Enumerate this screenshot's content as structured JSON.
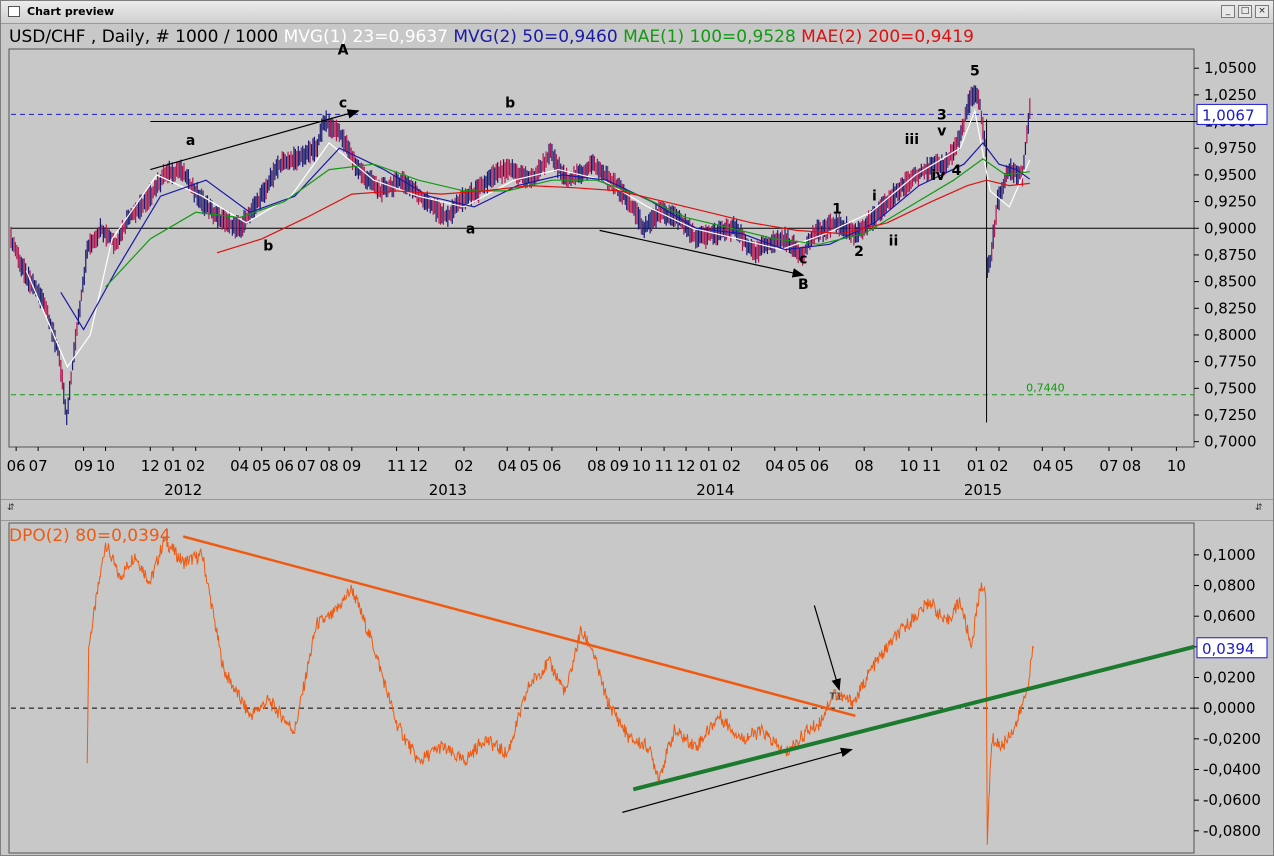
{
  "window": {
    "title": "Chart preview",
    "buttons": {
      "minimize": "_",
      "maximize": "□",
      "close": "×"
    },
    "split_arrows": {
      "left": "⇵",
      "right": "⇵"
    }
  },
  "price_panel": {
    "symbol_label": "USD/CHF , Daily, # 1000 / 1000",
    "indicators": [
      {
        "label": "MVG(1) 23=0,9637",
        "color": "#ffffff"
      },
      {
        "label": "MVG(2) 50=0,9460",
        "color": "#1a1aa8"
      },
      {
        "label": "MAE(1) 100=0,9528",
        "color": "#129a12"
      },
      {
        "label": "MAE(2) 200=0,9419",
        "color": "#e01010"
      }
    ],
    "current_value_label": "1,0067",
    "level_label": "0,7440",
    "wave_labels": [
      {
        "text": "A",
        "x": "2012-08-20",
        "y": 1.063
      },
      {
        "text": "c",
        "x": "2012-08-20",
        "y": 1.013
      },
      {
        "text": "a",
        "x": "2012-01-25",
        "y": 0.978
      },
      {
        "text": "b",
        "x": "2012-05-10",
        "y": 0.879
      },
      {
        "text": "b",
        "x": "2013-04-05",
        "y": 1.013
      },
      {
        "text": "a",
        "x": "2013-02-10",
        "y": 0.895
      },
      {
        "text": "c",
        "x": "2014-05-10",
        "y": 0.867
      },
      {
        "text": "B",
        "x": "2014-05-10",
        "y": 0.843
      },
      {
        "text": "1",
        "x": "2014-06-25",
        "y": 0.914
      },
      {
        "text": "2",
        "x": "2014-07-25",
        "y": 0.874
      },
      {
        "text": "i",
        "x": "2014-08-15",
        "y": 0.926
      },
      {
        "text": "ii",
        "x": "2014-09-10",
        "y": 0.884
      },
      {
        "text": "iii",
        "x": "2014-10-05",
        "y": 0.979
      },
      {
        "text": "iv",
        "x": "2014-11-10",
        "y": 0.945
      },
      {
        "text": "v",
        "x": "2014-11-15",
        "y": 0.987
      },
      {
        "text": "3",
        "x": "2014-11-15",
        "y": 1.002
      },
      {
        "text": "4",
        "x": "2014-12-05",
        "y": 0.95
      },
      {
        "text": "5",
        "x": "2014-12-30",
        "y": 1.043
      }
    ]
  },
  "dpo_panel": {
    "indicator_label": "DPO(2) 80=0,0394",
    "current_value_label": "0,0394",
    "annotation_label": "T1"
  },
  "chart_data": [
    {
      "type": "line",
      "title": "USD/CHF , Daily, # 1000 / 1000",
      "y_axis_side": "right",
      "ylim": [
        0.695,
        1.068
      ],
      "xlim": [
        "2011-05-25",
        "2015-10-25"
      ],
      "y_ticks": [
        "1,0500",
        "1,0250",
        "1,0000",
        "0,9750",
        "0,9500",
        "0,9250",
        "0,9000",
        "0,8750",
        "0,8500",
        "0,8250",
        "0,8000",
        "0,7750",
        "0,7500",
        "0,7250",
        "0,7000"
      ],
      "y_tick_values": [
        1.05,
        1.025,
        1.0,
        0.975,
        0.95,
        0.925,
        0.9,
        0.875,
        0.85,
        0.825,
        0.8,
        0.775,
        0.75,
        0.725,
        0.7
      ],
      "x_ticks": [
        {
          "label": "06",
          "x": "2011-06-01"
        },
        {
          "label": "07",
          "x": "2011-07-01"
        },
        {
          "label": "09",
          "x": "2011-09-01"
        },
        {
          "label": "10",
          "x": "2011-10-01"
        },
        {
          "label": "12",
          "x": "2011-12-01"
        },
        {
          "label": "01",
          "x": "2012-01-01"
        },
        {
          "label": "02",
          "x": "2012-02-01"
        },
        {
          "label": "04",
          "x": "2012-04-01"
        },
        {
          "label": "05",
          "x": "2012-05-01"
        },
        {
          "label": "06",
          "x": "2012-06-01"
        },
        {
          "label": "07",
          "x": "2012-07-01"
        },
        {
          "label": "08",
          "x": "2012-08-01"
        },
        {
          "label": "09",
          "x": "2012-09-01"
        },
        {
          "label": "11",
          "x": "2012-11-01"
        },
        {
          "label": "12",
          "x": "2012-12-01"
        },
        {
          "label": "02",
          "x": "2013-02-01"
        },
        {
          "label": "04",
          "x": "2013-04-01"
        },
        {
          "label": "05",
          "x": "2013-05-01"
        },
        {
          "label": "06",
          "x": "2013-06-01"
        },
        {
          "label": "08",
          "x": "2013-08-01"
        },
        {
          "label": "09",
          "x": "2013-09-01"
        },
        {
          "label": "10",
          "x": "2013-10-01"
        },
        {
          "label": "11",
          "x": "2013-11-01"
        },
        {
          "label": "12",
          "x": "2013-12-01"
        },
        {
          "label": "01",
          "x": "2014-01-01"
        },
        {
          "label": "02",
          "x": "2014-02-01"
        },
        {
          "label": "04",
          "x": "2014-04-01"
        },
        {
          "label": "05",
          "x": "2014-05-01"
        },
        {
          "label": "06",
          "x": "2014-06-01"
        },
        {
          "label": "08",
          "x": "2014-08-01"
        },
        {
          "label": "10",
          "x": "2014-10-01"
        },
        {
          "label": "11",
          "x": "2014-11-01"
        },
        {
          "label": "01",
          "x": "2015-01-01"
        },
        {
          "label": "02",
          "x": "2015-02-01"
        },
        {
          "label": "04",
          "x": "2015-04-01"
        },
        {
          "label": "05",
          "x": "2015-05-01"
        },
        {
          "label": "07",
          "x": "2015-07-01"
        },
        {
          "label": "08",
          "x": "2015-08-01"
        },
        {
          "label": "10",
          "x": "2015-10-01"
        }
      ],
      "year_labels": [
        {
          "label": "2012",
          "x": "2012-01-15"
        },
        {
          "label": "2013",
          "x": "2013-01-10"
        },
        {
          "label": "2014",
          "x": "2014-01-10"
        },
        {
          "label": "2015",
          "x": "2015-01-10"
        }
      ],
      "grid": false,
      "series": [
        {
          "name": "",
          "role": "price",
          "color": "#b01850",
          "x": [
            "2011-05-25",
            "2011-06-15",
            "2011-07-10",
            "2011-07-30",
            "2011-08-09",
            "2011-08-20",
            "2011-09-06",
            "2011-09-25",
            "2011-10-15",
            "2011-11-01",
            "2011-11-25",
            "2011-12-20",
            "2012-01-10",
            "2012-02-05",
            "2012-03-01",
            "2012-04-01",
            "2012-05-01",
            "2012-05-25",
            "2012-06-15",
            "2012-07-15",
            "2012-07-25",
            "2012-08-15",
            "2012-09-10",
            "2012-10-10",
            "2012-11-10",
            "2012-12-10",
            "2013-01-10",
            "2013-01-25",
            "2013-02-20",
            "2013-03-15",
            "2013-04-05",
            "2013-05-05",
            "2013-05-30",
            "2013-06-20",
            "2013-07-10",
            "2013-07-25",
            "2013-08-20",
            "2013-09-10",
            "2013-10-05",
            "2013-10-25",
            "2013-11-20",
            "2013-12-15",
            "2014-01-10",
            "2014-02-05",
            "2014-03-05",
            "2014-03-20",
            "2014-04-15",
            "2014-05-08",
            "2014-05-25",
            "2014-06-25",
            "2014-07-20",
            "2014-08-15",
            "2014-09-15",
            "2014-10-10",
            "2014-10-25",
            "2014-11-20",
            "2014-12-10",
            "2014-12-25",
            "2015-01-05",
            "2015-01-14",
            "2015-01-15",
            "2015-01-20",
            "2015-01-30",
            "2015-02-15",
            "2015-03-05",
            "2015-03-15"
          ],
          "y": [
            0.89,
            0.855,
            0.83,
            0.78,
            0.72,
            0.79,
            0.88,
            0.9,
            0.885,
            0.91,
            0.925,
            0.95,
            0.955,
            0.93,
            0.91,
            0.9,
            0.93,
            0.96,
            0.965,
            0.975,
            1.0,
            0.99,
            0.955,
            0.935,
            0.945,
            0.925,
            0.91,
            0.925,
            0.935,
            0.95,
            0.955,
            0.945,
            0.97,
            0.945,
            0.95,
            0.96,
            0.945,
            0.93,
            0.9,
            0.915,
            0.91,
            0.89,
            0.895,
            0.9,
            0.875,
            0.885,
            0.89,
            0.875,
            0.895,
            0.905,
            0.895,
            0.91,
            0.935,
            0.95,
            0.955,
            0.96,
            0.985,
            1.025,
            1.02,
            0.975,
            0.86,
            0.87,
            0.925,
            0.955,
            0.95,
            1.01
          ]
        },
        {
          "name": "MVG(1) 23=0,9637",
          "color": "#ffffff",
          "x": [
            "2011-06-15",
            "2011-08-10",
            "2011-09-10",
            "2011-10-10",
            "2011-12-10",
            "2012-02-10",
            "2012-04-10",
            "2012-06-10",
            "2012-08-01",
            "2012-10-01",
            "2012-12-01",
            "2013-02-01",
            "2013-04-10",
            "2013-06-10",
            "2013-08-10",
            "2013-10-10",
            "2013-12-10",
            "2014-02-10",
            "2014-04-10",
            "2014-06-10",
            "2014-08-10",
            "2014-10-10",
            "2014-12-10",
            "2014-12-30",
            "2015-01-20",
            "2015-02-15",
            "2015-03-15"
          ],
          "y": [
            0.86,
            0.77,
            0.8,
            0.89,
            0.95,
            0.93,
            0.905,
            0.93,
            0.98,
            0.945,
            0.93,
            0.92,
            0.945,
            0.955,
            0.945,
            0.92,
            0.9,
            0.89,
            0.88,
            0.895,
            0.915,
            0.95,
            0.975,
            1.01,
            0.935,
            0.92,
            0.964
          ]
        },
        {
          "name": "MVG(2) 50=0,9460",
          "color": "#1a1aa8",
          "x": [
            "2011-08-01",
            "2011-09-01",
            "2011-10-15",
            "2011-12-15",
            "2012-02-15",
            "2012-04-15",
            "2012-06-15",
            "2012-08-15",
            "2012-10-15",
            "2012-12-15",
            "2013-02-15",
            "2013-04-15",
            "2013-06-15",
            "2013-08-15",
            "2013-10-15",
            "2013-12-15",
            "2014-02-15",
            "2014-04-15",
            "2014-06-15",
            "2014-08-15",
            "2014-10-15",
            "2014-12-15",
            "2015-01-10",
            "2015-02-01",
            "2015-02-25",
            "2015-03-15"
          ],
          "y": [
            0.84,
            0.805,
            0.86,
            0.93,
            0.945,
            0.915,
            0.93,
            0.975,
            0.955,
            0.93,
            0.92,
            0.94,
            0.95,
            0.945,
            0.925,
            0.9,
            0.895,
            0.88,
            0.885,
            0.905,
            0.94,
            0.96,
            0.98,
            0.96,
            0.955,
            0.946
          ]
        },
        {
          "name": "MAE(1) 100=0,9528",
          "color": "#129a12",
          "x": [
            "2011-10-01",
            "2011-12-01",
            "2012-02-01",
            "2012-04-01",
            "2012-06-01",
            "2012-08-01",
            "2012-10-01",
            "2012-12-01",
            "2013-02-01",
            "2013-04-01",
            "2013-06-01",
            "2013-08-01",
            "2013-10-01",
            "2013-12-01",
            "2014-02-01",
            "2014-04-01",
            "2014-06-01",
            "2014-08-01",
            "2014-10-01",
            "2014-12-01",
            "2015-01-10",
            "2015-02-10",
            "2015-03-15"
          ],
          "y": [
            0.845,
            0.89,
            0.915,
            0.91,
            0.925,
            0.955,
            0.96,
            0.945,
            0.935,
            0.935,
            0.945,
            0.945,
            0.93,
            0.91,
            0.9,
            0.89,
            0.885,
            0.895,
            0.92,
            0.945,
            0.965,
            0.95,
            0.953
          ]
        },
        {
          "name": "MAE(2) 200=0,9419",
          "color": "#e01010",
          "x": [
            "2012-03-01",
            "2012-05-01",
            "2012-07-01",
            "2012-09-01",
            "2012-11-01",
            "2013-01-01",
            "2013-03-01",
            "2013-05-01",
            "2013-07-01",
            "2013-09-01",
            "2013-11-01",
            "2014-01-01",
            "2014-03-01",
            "2014-05-01",
            "2014-07-01",
            "2014-09-01",
            "2014-11-01",
            "2014-12-20",
            "2015-01-15",
            "2015-02-15",
            "2015-03-15"
          ],
          "y": [
            0.877,
            0.89,
            0.91,
            0.932,
            0.935,
            0.932,
            0.935,
            0.94,
            0.938,
            0.935,
            0.925,
            0.915,
            0.905,
            0.898,
            0.895,
            0.905,
            0.925,
            0.94,
            0.945,
            0.94,
            0.942
          ]
        }
      ],
      "horizontal_lines": [
        {
          "y": 1.0067,
          "style": "dashed",
          "color": "#1a1ad0"
        },
        {
          "y": 1.0,
          "style": "solid",
          "color": "#000000",
          "x_start": "2011-12-01"
        },
        {
          "y": 0.9,
          "style": "solid",
          "color": "#000000"
        },
        {
          "y": 0.744,
          "style": "dashed",
          "color": "#129a12"
        }
      ]
    },
    {
      "type": "line",
      "title": "DPO(2) 80=0,0394",
      "y_axis_side": "right",
      "ylim": [
        -0.0945,
        0.1208
      ],
      "xlim": [
        "2011-05-25",
        "2015-10-25"
      ],
      "y_ticks": [
        "0,1000",
        "0,0800",
        "0,0600",
        "0,0400",
        "0,0200",
        "0,0000",
        "-0,0200",
        "-0,0400",
        "-0,0600",
        "-0,0800"
      ],
      "y_tick_values": [
        0.1,
        0.08,
        0.06,
        0.04,
        0.02,
        0.0,
        -0.02,
        -0.04,
        -0.06,
        -0.08
      ],
      "grid": false,
      "series": [
        {
          "name": "DPO(2) 80=0,0394",
          "color": "#f05a10",
          "x": [
            "2011-09-06",
            "2011-09-08",
            "2011-10-01",
            "2011-10-20",
            "2011-11-10",
            "2011-12-01",
            "2011-12-20",
            "2012-01-15",
            "2012-02-10",
            "2012-03-10",
            "2012-04-15",
            "2012-05-10",
            "2012-06-15",
            "2012-07-15",
            "2012-08-05",
            "2012-09-01",
            "2012-10-01",
            "2012-11-01",
            "2012-12-01",
            "2013-01-01",
            "2013-02-01",
            "2013-03-01",
            "2013-04-01",
            "2013-05-01",
            "2013-05-28",
            "2013-06-20",
            "2013-07-10",
            "2013-07-25",
            "2013-08-15",
            "2013-09-15",
            "2013-10-10",
            "2013-10-25",
            "2013-11-15",
            "2013-12-15",
            "2014-01-15",
            "2014-02-15",
            "2014-03-15",
            "2014-04-15",
            "2014-05-15",
            "2014-06-01",
            "2014-06-20",
            "2014-07-10",
            "2014-07-20",
            "2014-08-10",
            "2014-09-10",
            "2014-10-10",
            "2014-10-30",
            "2014-11-20",
            "2014-12-10",
            "2014-12-25",
            "2015-01-08",
            "2015-01-14",
            "2015-01-16",
            "2015-01-22",
            "2015-02-05",
            "2015-02-25",
            "2015-03-10",
            "2015-03-20"
          ],
          "y": [
            -0.036,
            0.04,
            0.108,
            0.085,
            0.1,
            0.082,
            0.11,
            0.095,
            0.1,
            0.025,
            -0.005,
            0.005,
            -0.015,
            0.055,
            0.06,
            0.078,
            0.04,
            -0.01,
            -0.035,
            -0.025,
            -0.035,
            -0.02,
            -0.03,
            0.015,
            0.03,
            0.01,
            0.05,
            0.04,
            0.005,
            -0.02,
            -0.025,
            -0.045,
            -0.015,
            -0.025,
            -0.005,
            -0.02,
            -0.015,
            -0.03,
            -0.015,
            -0.01,
            0.01,
            0.005,
            0.005,
            0.025,
            0.045,
            0.06,
            0.07,
            0.055,
            0.07,
            0.04,
            0.083,
            0.07,
            -0.085,
            -0.02,
            -0.025,
            -0.01,
            0.01,
            0.039
          ]
        }
      ],
      "horizontal_lines": [
        {
          "y": 0.0,
          "style": "dashed",
          "color": "#000000"
        }
      ],
      "trend_lines": [
        {
          "name": "resistance",
          "color": "#f05a10",
          "x": [
            "2012-01-15",
            "2014-07-20"
          ],
          "y": [
            0.112,
            -0.005
          ]
        },
        {
          "name": "support",
          "color": "#1b7a2e",
          "x": [
            "2013-09-20",
            "2015-10-25"
          ],
          "y": [
            -0.053,
            0.04
          ]
        }
      ]
    }
  ]
}
